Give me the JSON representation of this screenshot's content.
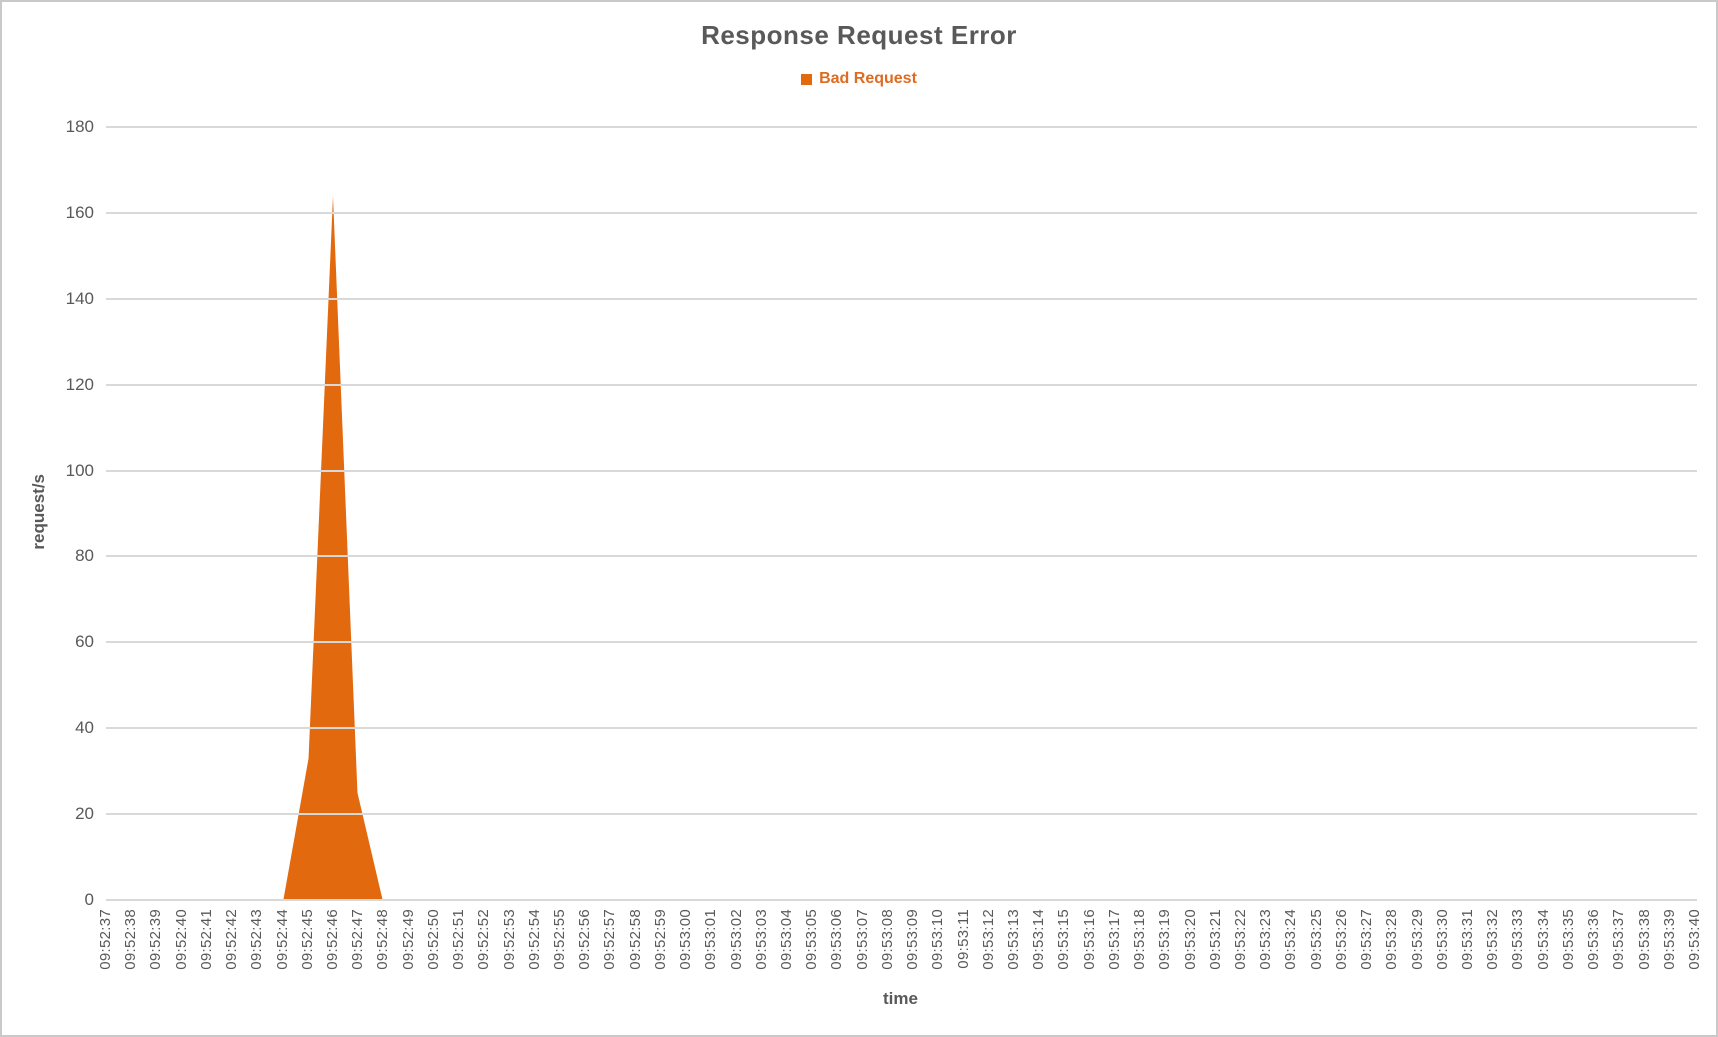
{
  "window": {
    "background": "#ffffff",
    "border_color": "#c9c9c9"
  },
  "colors": {
    "accent": "#e2690e",
    "legend_text": "#dd6b20",
    "title_text": "#595959",
    "axis_text": "#595959",
    "tick_text": "#595959",
    "gridline": "#d9d9d9",
    "area_outline": "#ffffff"
  },
  "chart_data": {
    "type": "area",
    "title": "Response Request Error",
    "xlabel": "time",
    "ylabel": "request/s",
    "ylim": [
      0,
      180
    ],
    "y_ticks": [
      0,
      20,
      40,
      60,
      80,
      100,
      120,
      140,
      160,
      180
    ],
    "grid": true,
    "legend_position": "top",
    "categories": [
      "09:52:37",
      "09:52:38",
      "09:52:39",
      "09:52:40",
      "09:52:41",
      "09:52:42",
      "09:52:43",
      "09:52:44",
      "09:52:45",
      "09:52:46",
      "09:52:47",
      "09:52:48",
      "09:52:49",
      "09:52:50",
      "09:52:51",
      "09:52:52",
      "09:52:53",
      "09:52:54",
      "09:52:55",
      "09:52:56",
      "09:52:57",
      "09:52:58",
      "09:52:59",
      "09:53:00",
      "09:53:01",
      "09:53:02",
      "09:53:03",
      "09:53:04",
      "09:53:05",
      "09:53:06",
      "09:53:07",
      "09:53:08",
      "09:53:09",
      "09:53:10",
      "09:53:11",
      "09:53:12",
      "09:53:13",
      "09:53:14",
      "09:53:15",
      "09:53:16",
      "09:53:17",
      "09:53:18",
      "09:53:19",
      "09:53:20",
      "09:53:21",
      "09:53:22",
      "09:53:23",
      "09:53:24",
      "09:53:25",
      "09:53:26",
      "09:53:27",
      "09:53:28",
      "09:53:29",
      "09:53:30",
      "09:53:31",
      "09:53:32",
      "09:53:33",
      "09:53:34",
      "09:53:35",
      "09:53:36",
      "09:53:37",
      "09:53:38",
      "09:53:39",
      "09:53:40"
    ],
    "series": [
      {
        "name": "Bad Request",
        "color": "#e2690e",
        "values": [
          0,
          0,
          0,
          0,
          0,
          0,
          0,
          0,
          33,
          168,
          25,
          0,
          0,
          0,
          0,
          0,
          0,
          0,
          0,
          0,
          0,
          0,
          0,
          0,
          0,
          0,
          0,
          0,
          0,
          0,
          0,
          0,
          0,
          0,
          0,
          0,
          0,
          0,
          0,
          0,
          0,
          0,
          0,
          0,
          0,
          0,
          0,
          0,
          0,
          0,
          0,
          0,
          0,
          0,
          0,
          0,
          0,
          0,
          0,
          0,
          0,
          0,
          0,
          0
        ]
      }
    ]
  }
}
